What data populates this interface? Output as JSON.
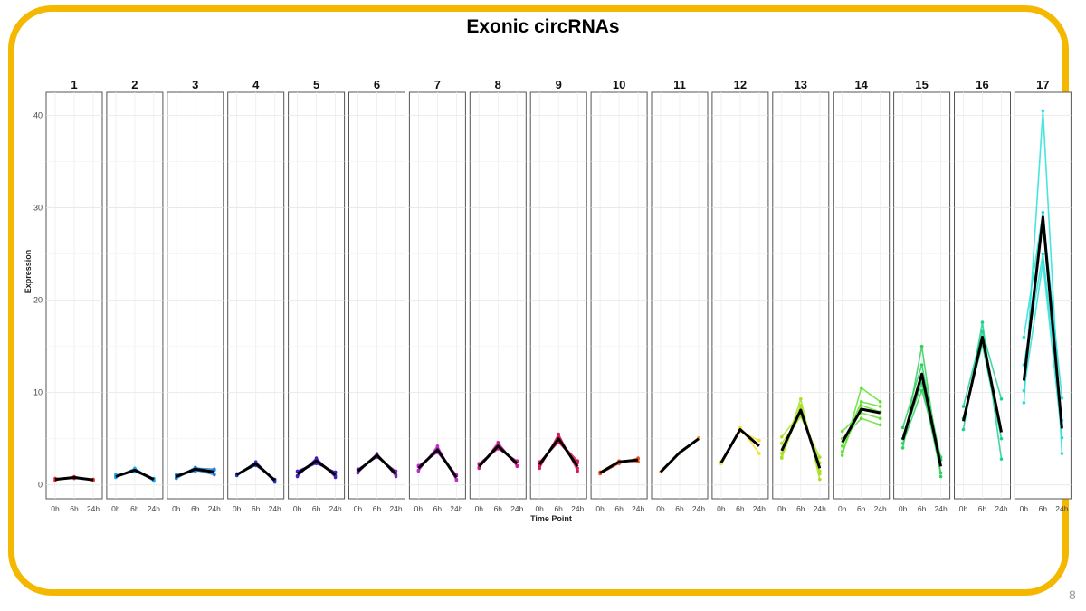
{
  "slide": {
    "number": "8"
  },
  "colors": {
    "frame": "#f5b800",
    "mean_line": "#000000"
  },
  "chart_data": {
    "type": "line",
    "title": "Exonic circRNAs",
    "xlabel": "Time Point",
    "ylabel": "Expression",
    "x": [
      "0h",
      "6h",
      "24h"
    ],
    "ylim": [
      -1.5,
      42.5
    ],
    "yticks": [
      0,
      10,
      20,
      30,
      40
    ],
    "grid": true,
    "panels": [
      {
        "label": "1",
        "color": "#e0202a",
        "mean": [
          0.6,
          0.8,
          0.55
        ],
        "series": [
          [
            0.5,
            0.9,
            0.5
          ],
          [
            0.7,
            0.7,
            0.6
          ]
        ]
      },
      {
        "label": "2",
        "color": "#1aa7e8",
        "mean": [
          0.9,
          1.6,
          0.6
        ],
        "series": [
          [
            0.8,
            1.8,
            0.5
          ],
          [
            1.1,
            1.4,
            0.7
          ],
          [
            0.9,
            1.7,
            0.4
          ]
        ]
      },
      {
        "label": "3",
        "color": "#1e7fd4",
        "mean": [
          0.9,
          1.7,
          1.4
        ],
        "series": [
          [
            0.8,
            1.9,
            1.2
          ],
          [
            1.0,
            1.5,
            1.6
          ],
          [
            0.7,
            1.8,
            1.7
          ],
          [
            1.1,
            1.6,
            1.1
          ]
        ]
      },
      {
        "label": "4",
        "color": "#2a36c8",
        "mean": [
          1.1,
          2.3,
          0.5
        ],
        "series": [
          [
            1.0,
            2.5,
            0.4
          ],
          [
            1.2,
            2.1,
            0.6
          ],
          [
            1.1,
            2.4,
            0.3
          ]
        ]
      },
      {
        "label": "5",
        "color": "#4a1fb8",
        "mean": [
          1.2,
          2.6,
          1.1
        ],
        "series": [
          [
            0.9,
            2.9,
            0.8
          ],
          [
            1.4,
            2.3,
            1.4
          ],
          [
            1.0,
            2.8,
            1.0
          ],
          [
            1.5,
            2.4,
            1.3
          ]
        ]
      },
      {
        "label": "6",
        "color": "#7a2aa8",
        "mean": [
          1.5,
          3.2,
          1.2
        ],
        "series": [
          [
            1.3,
            3.4,
            0.9
          ],
          [
            1.7,
            3.0,
            1.5
          ],
          [
            1.4,
            3.3,
            1.1
          ]
        ]
      },
      {
        "label": "7",
        "color": "#c02ad0",
        "mean": [
          1.8,
          3.8,
          0.8
        ],
        "series": [
          [
            1.5,
            4.2,
            0.5
          ],
          [
            2.1,
            3.5,
            1.0
          ],
          [
            1.6,
            4.0,
            0.6
          ],
          [
            2.0,
            3.6,
            1.1
          ]
        ]
      },
      {
        "label": "8",
        "color": "#c81e8c",
        "mean": [
          2.0,
          4.2,
          2.3
        ],
        "series": [
          [
            1.8,
            4.6,
            2.0
          ],
          [
            2.2,
            3.9,
            2.6
          ],
          [
            1.9,
            4.4,
            2.1
          ],
          [
            2.3,
            4.0,
            2.5
          ]
        ]
      },
      {
        "label": "9",
        "color": "#d81a55",
        "mean": [
          2.2,
          5.0,
          2.0
        ],
        "series": [
          [
            1.8,
            5.5,
            1.5
          ],
          [
            2.5,
            4.6,
            2.4
          ],
          [
            2.0,
            5.3,
            1.8
          ],
          [
            2.3,
            4.8,
            2.6
          ]
        ]
      },
      {
        "label": "10",
        "color": "#e8541e",
        "mean": [
          1.3,
          2.5,
          2.7
        ],
        "series": [
          [
            1.2,
            2.3,
            2.9
          ],
          [
            1.4,
            2.6,
            2.5
          ],
          [
            1.3,
            2.4,
            2.8
          ]
        ]
      },
      {
        "label": "11",
        "color": "#f0a020",
        "mean": [
          1.4,
          3.5,
          5.0
        ],
        "series": [
          [
            1.4,
            3.4,
            5.1
          ]
        ]
      },
      {
        "label": "12",
        "color": "#f2e020",
        "mean": [
          2.4,
          6.0,
          4.2
        ],
        "series": [
          [
            2.3,
            6.2,
            3.4
          ],
          [
            2.5,
            5.8,
            4.8
          ]
        ]
      },
      {
        "label": "13",
        "color": "#a8e020",
        "mean": [
          3.7,
          8.1,
          1.8
        ],
        "series": [
          [
            2.9,
            9.3,
            0.6
          ],
          [
            4.5,
            7.4,
            3.0
          ],
          [
            3.4,
            8.6,
            1.2
          ],
          [
            5.2,
            7.8,
            2.4
          ],
          [
            3.0,
            8.3,
            1.5
          ]
        ]
      },
      {
        "label": "14",
        "color": "#60e030",
        "mean": [
          4.6,
          8.2,
          7.8
        ],
        "series": [
          [
            3.2,
            10.5,
            9.0
          ],
          [
            5.0,
            7.2,
            6.5
          ],
          [
            4.2,
            9.0,
            8.5
          ],
          [
            5.8,
            7.8,
            7.2
          ],
          [
            3.6,
            8.6,
            7.9
          ]
        ]
      },
      {
        "label": "15",
        "color": "#30d060",
        "mean": [
          4.9,
          12.0,
          2.0
        ],
        "series": [
          [
            4.0,
            15.0,
            0.9
          ],
          [
            6.2,
            13.0,
            2.7
          ],
          [
            5.0,
            11.0,
            1.3
          ],
          [
            4.5,
            10.2,
            3.0
          ]
        ]
      },
      {
        "label": "16",
        "color": "#20d090",
        "mean": [
          6.9,
          16.0,
          5.7
        ],
        "series": [
          [
            6.0,
            17.6,
            2.8
          ],
          [
            8.5,
            16.6,
            9.3
          ],
          [
            7.2,
            15.2,
            5.0
          ]
        ]
      },
      {
        "label": "17",
        "color": "#28e0d8",
        "mean": [
          11.3,
          29.0,
          6.1
        ],
        "series": [
          [
            8.9,
            40.5,
            3.4
          ],
          [
            16.0,
            29.5,
            9.4
          ],
          [
            10.2,
            24.1,
            5.1
          ],
          [
            13.0,
            25.0,
            7.0
          ]
        ]
      }
    ]
  }
}
